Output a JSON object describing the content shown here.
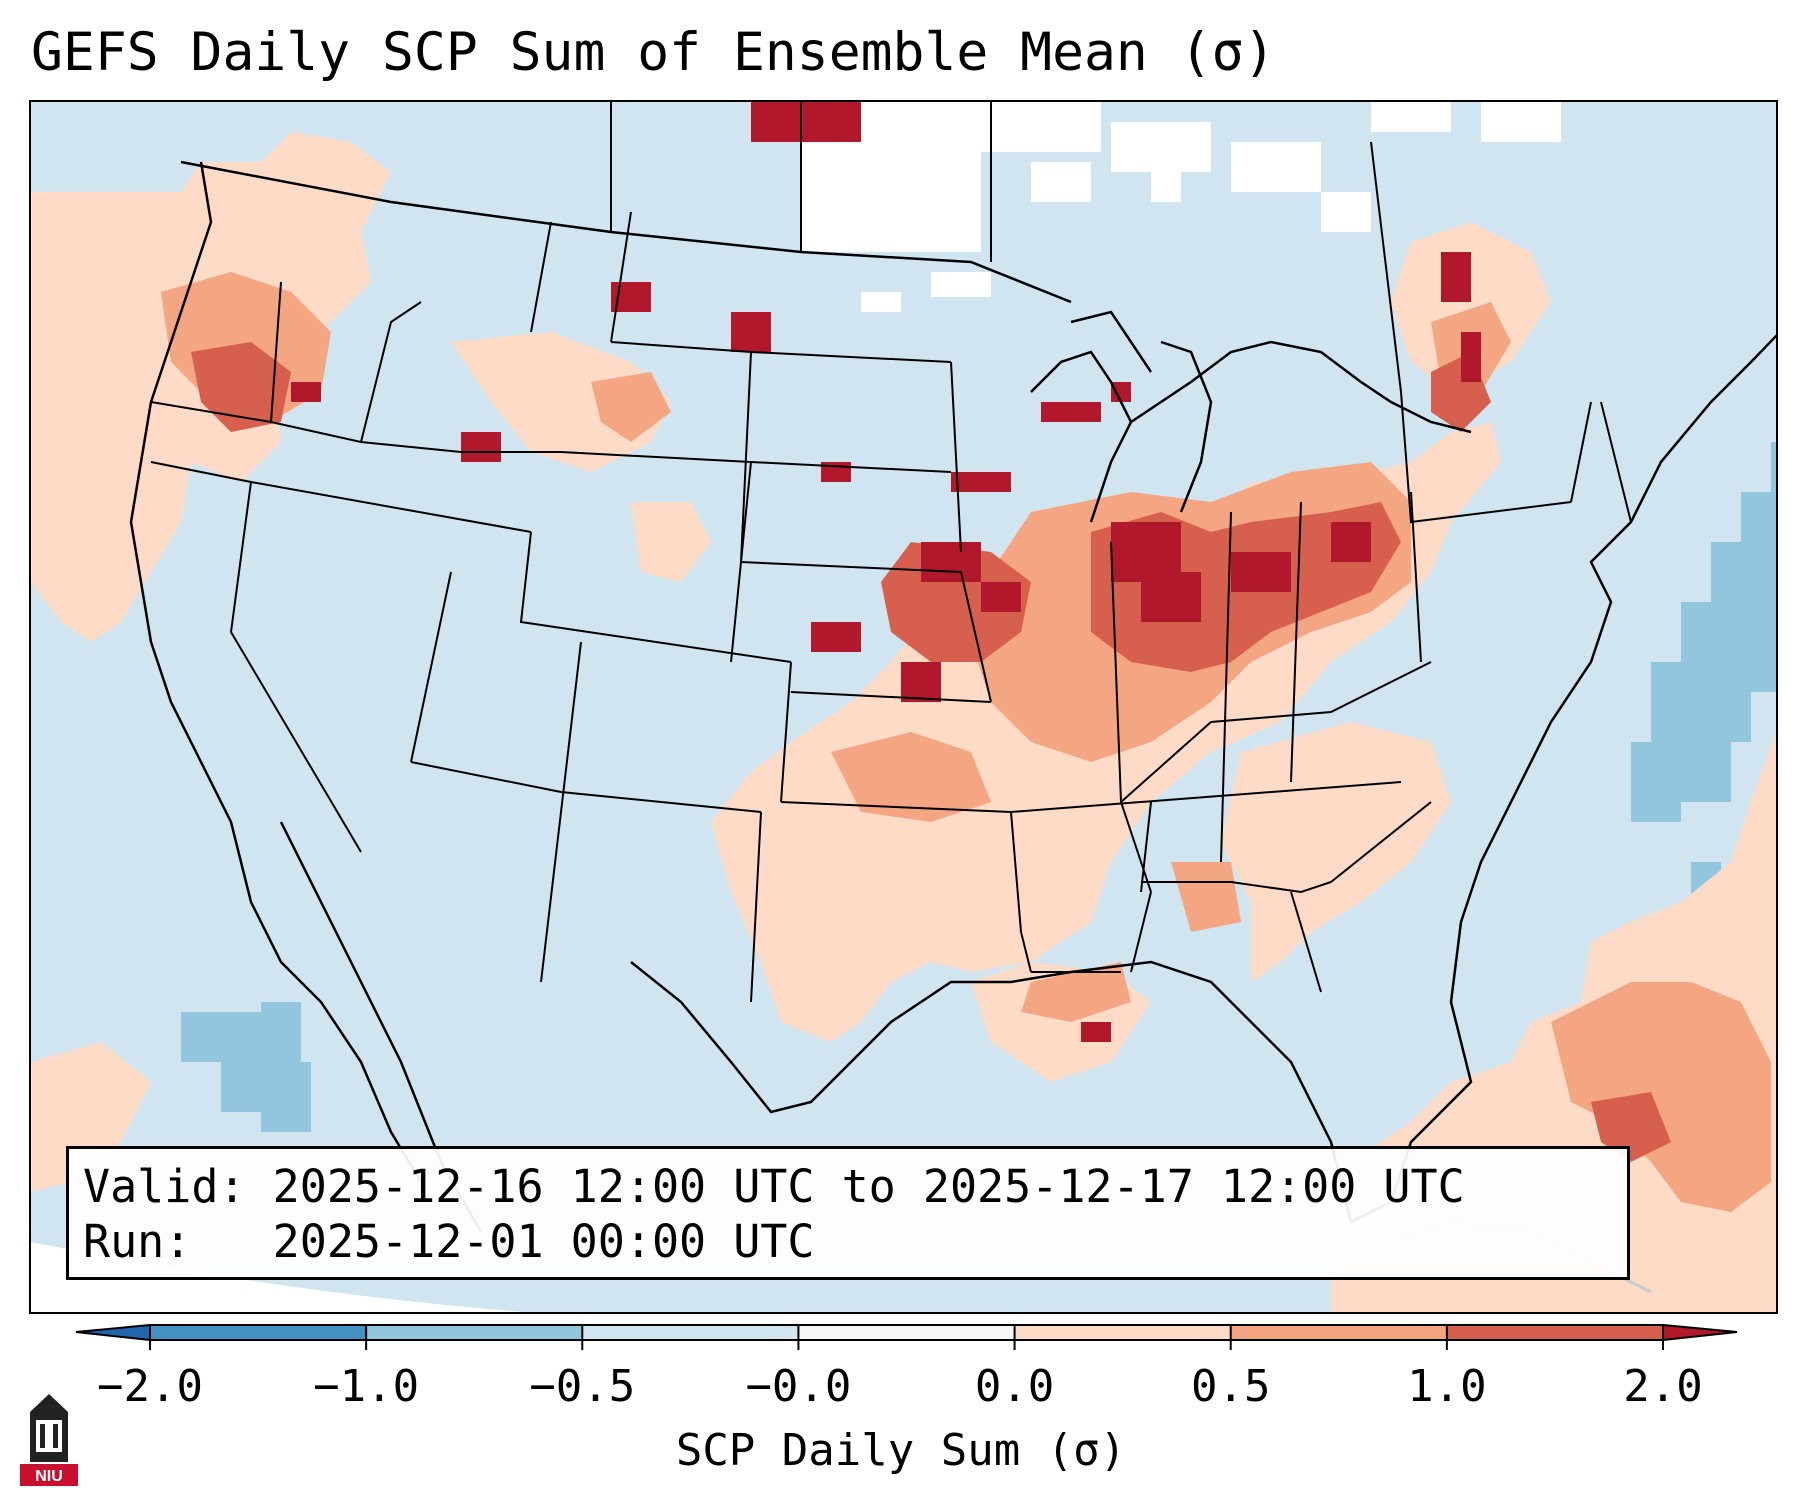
{
  "title": "GEFS Daily SCP Sum of Ensemble Mean (σ)",
  "info": {
    "valid": "Valid: 2025-12-16 12:00 UTC to 2025-12-17 12:00 UTC",
    "run": "Run:   2025-12-01 00:00 UTC"
  },
  "colorbar": {
    "label": "SCP Daily Sum (σ)",
    "ticks": [
      "−2.0",
      "−1.0",
      "−0.5",
      "−0.0",
      "0.0",
      "0.5",
      "1.0",
      "2.0"
    ],
    "bins": [
      {
        "from": -2.0,
        "to": -1.0,
        "color": "#4392c3"
      },
      {
        "from": -1.0,
        "to": -0.5,
        "color": "#92c5de"
      },
      {
        "from": -0.5,
        "to": 0.0,
        "color": "#d1e5f0"
      },
      {
        "from": -0.0,
        "to": 0.0,
        "color": "#f7f7f7"
      },
      {
        "from": 0.0,
        "to": 0.5,
        "color": "#fddbc7"
      },
      {
        "from": 0.5,
        "to": 1.0,
        "color": "#f4a582"
      },
      {
        "from": 1.0,
        "to": 2.0,
        "color": "#d6604d"
      }
    ],
    "under_color": "#2166ac",
    "over_color": "#b2182b"
  },
  "logo": {
    "text": "NIU",
    "color": "#c8102e"
  },
  "colors": {
    "background_neutral": "#d1e5f0",
    "land_high": "#b2182b"
  }
}
